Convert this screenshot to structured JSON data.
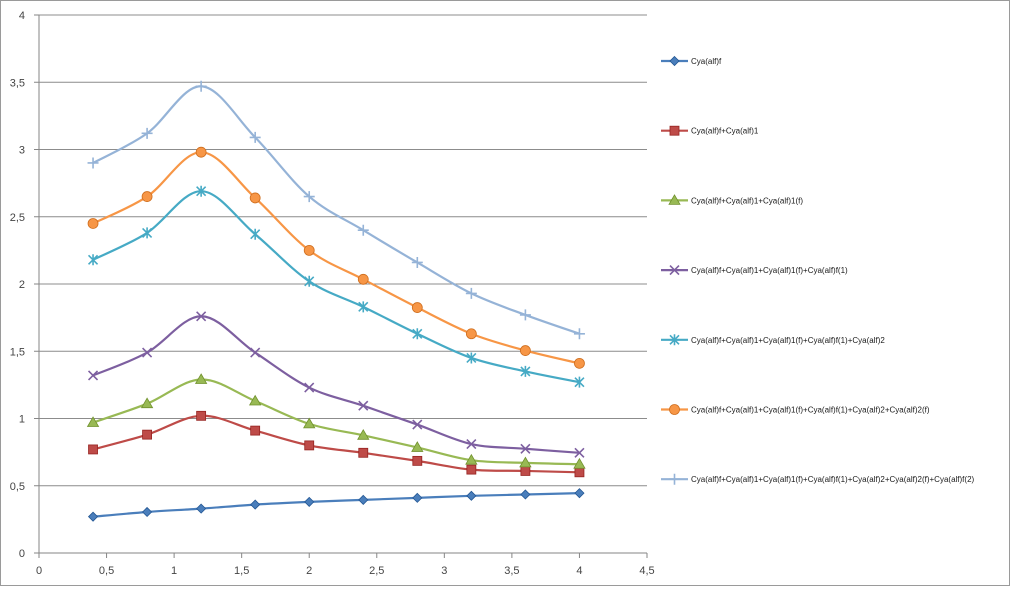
{
  "chart_data": {
    "type": "line",
    "title": "",
    "xlabel": "",
    "ylabel": "",
    "xlim": [
      0,
      4.5
    ],
    "ylim": [
      0,
      4
    ],
    "x_ticks": [
      "0",
      "0,5",
      "1",
      "1,5",
      "2",
      "2,5",
      "3",
      "3,5",
      "4",
      "4,5"
    ],
    "y_ticks": [
      "0",
      "0,5",
      "1",
      "1,5",
      "2",
      "2,5",
      "3",
      "3,5",
      "4"
    ],
    "grid": "horizontal",
    "smooth": true,
    "legend_position": "right",
    "x": [
      0.4,
      0.8,
      1.2,
      1.6,
      2.0,
      2.4,
      2.8,
      3.2,
      3.6,
      4.0
    ],
    "series": [
      {
        "name": "Cya(alf)f",
        "color": "#4a7ebb",
        "marker": "diamond",
        "values": [
          0.27,
          0.305,
          0.33,
          0.36,
          0.38,
          0.395,
          0.41,
          0.425,
          0.435,
          0.445
        ]
      },
      {
        "name": "Cya(alf)f+Cya(alf)1",
        "color": "#be4b48",
        "marker": "square",
        "values": [
          0.77,
          0.88,
          1.02,
          0.91,
          0.8,
          0.745,
          0.685,
          0.62,
          0.61,
          0.6
        ]
      },
      {
        "name": "Cya(alf)f+Cya(alf)1+Cya(alf)1(f)",
        "color": "#98b954",
        "marker": "triangle",
        "values": [
          0.97,
          1.11,
          1.29,
          1.13,
          0.96,
          0.875,
          0.785,
          0.69,
          0.67,
          0.66
        ]
      },
      {
        "name": "Cya(alf)f+Cya(alf)1+Cya(alf)1(f)+Cya(alf)f(1)",
        "color": "#7d5fa0",
        "marker": "x",
        "values": [
          1.32,
          1.49,
          1.76,
          1.49,
          1.23,
          1.095,
          0.955,
          0.81,
          0.775,
          0.745
        ]
      },
      {
        "name": "Cya(alf)f+Cya(alf)1+Cya(alf)1(f)+Cya(alf)f(1)+Cya(alf)2",
        "color": "#46aac5",
        "marker": "star",
        "values": [
          2.18,
          2.38,
          2.69,
          2.37,
          2.02,
          1.83,
          1.63,
          1.45,
          1.35,
          1.27
        ]
      },
      {
        "name": "Cya(alf)f+Cya(alf)1+Cya(alf)1(f)+Cya(alf)f(1)+Cya(alf)2+Cya(alf)2(f)",
        "color": "#f79646",
        "marker": "circle",
        "values": [
          2.45,
          2.65,
          2.98,
          2.64,
          2.25,
          2.035,
          1.825,
          1.63,
          1.505,
          1.41
        ]
      },
      {
        "name": "Cya(alf)f+Cya(alf)1+Cya(alf)1(f)+Cya(alf)f(1)+Cya(alf)2+Cya(alf)2(f)+Cya(alf)f(2)",
        "color": "#95b3d7",
        "marker": "plus",
        "values": [
          2.9,
          3.12,
          3.47,
          3.09,
          2.65,
          2.4,
          2.16,
          1.93,
          1.77,
          1.63
        ]
      }
    ]
  }
}
